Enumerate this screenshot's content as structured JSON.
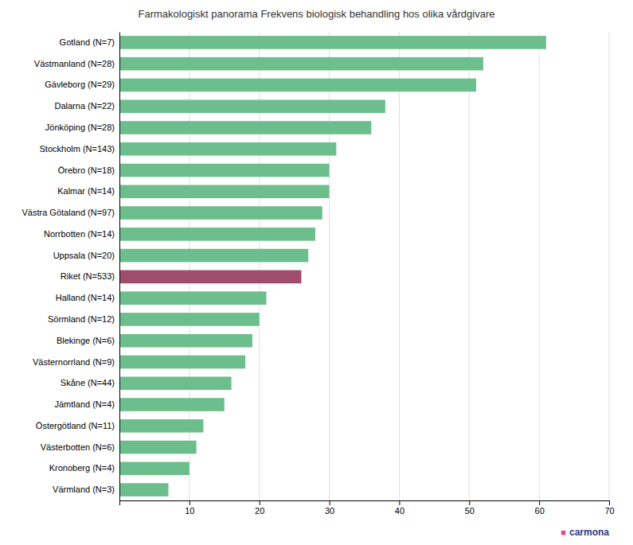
{
  "chart_data": {
    "type": "bar",
    "orientation": "horizontal",
    "title": "Farmakologiskt panorama Frekvens biologisk behandling hos olika vårdgivare",
    "categories": [
      "Gotland (N=7)",
      "Västmanland (N=28)",
      "Gävleborg (N=29)",
      "Dalarna (N=22)",
      "Jönköping (N=28)",
      "Stockholm (N=143)",
      "Örebro (N=18)",
      "Kalmar (N=14)",
      "Västra Götaland (N=97)",
      "Norrbotten (N=14)",
      "Uppsala (N=20)",
      "Riket (N=533)",
      "Halland (N=14)",
      "Sörmland (N=12)",
      "Blekinge (N=6)",
      "Västernorrland (N=9)",
      "Skåne (N=44)",
      "Jämtland (N=4)",
      "Östergötland (N=11)",
      "Västerbotten (N=6)",
      "Kronoberg (N=4)",
      "Värmland (N=3)"
    ],
    "values": [
      61,
      52,
      51,
      38,
      36,
      31,
      30,
      30,
      29,
      28,
      27,
      26,
      21,
      20,
      19,
      18,
      16,
      15,
      12,
      11,
      10,
      7
    ],
    "colors": [
      "#6dbe8d",
      "#6dbe8d",
      "#6dbe8d",
      "#6dbe8d",
      "#6dbe8d",
      "#6dbe8d",
      "#6dbe8d",
      "#6dbe8d",
      "#6dbe8d",
      "#6dbe8d",
      "#6dbe8d",
      "#9e4d6b",
      "#6dbe8d",
      "#6dbe8d",
      "#6dbe8d",
      "#6dbe8d",
      "#6dbe8d",
      "#6dbe8d",
      "#6dbe8d",
      "#6dbe8d",
      "#6dbe8d",
      "#6dbe8d"
    ],
    "xlim": [
      0,
      70
    ],
    "xticks": [
      10,
      20,
      30,
      40,
      50,
      60,
      70
    ],
    "grid": true,
    "annotations": [
      "■",
      "carmona"
    ]
  }
}
